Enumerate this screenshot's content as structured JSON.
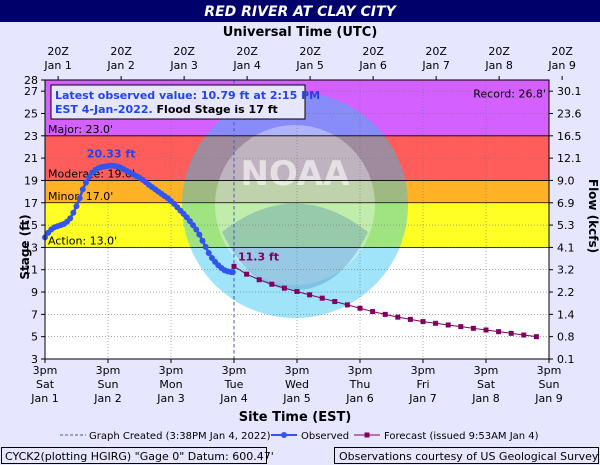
{
  "chart_data": {
    "type": "line",
    "title": "RED RIVER AT CLAY CITY",
    "top_axis_title": "Universal Time (UTC)",
    "bottom_axis_title": "Site Time (EST)",
    "ylabel_left": "Stage (ft)",
    "ylabel_right": "Flow (kcfs)",
    "ylim": [
      3,
      28
    ],
    "y_ticks": [
      3,
      5,
      7,
      9,
      11,
      13,
      15,
      17,
      19,
      21,
      23,
      25,
      27,
      28
    ],
    "flow_ticks": [
      {
        "stage": 27,
        "label": "30.1"
      },
      {
        "stage": 25,
        "label": "23.6"
      },
      {
        "stage": 23,
        "label": "16.5"
      },
      {
        "stage": 21,
        "label": "12.1"
      },
      {
        "stage": 19,
        "label": "9.0"
      },
      {
        "stage": 17,
        "label": "6.9"
      },
      {
        "stage": 15,
        "label": "5.3"
      },
      {
        "stage": 13,
        "label": "4.1"
      },
      {
        "stage": 11,
        "label": "3.2"
      },
      {
        "stage": 9,
        "label": "2.2"
      },
      {
        "stage": 7,
        "label": "1.4"
      },
      {
        "stage": 5,
        "label": "0.8"
      },
      {
        "stage": 3,
        "label": "0.1"
      }
    ],
    "x_range_days": [
      0,
      8
    ],
    "bottom_ticks": [
      {
        "l1": "3pm",
        "l2": "Sat",
        "l3": "Jan 1"
      },
      {
        "l1": "3pm",
        "l2": "Sun",
        "l3": "Jan 2"
      },
      {
        "l1": "3pm",
        "l2": "Mon",
        "l3": "Jan 3"
      },
      {
        "l1": "3pm",
        "l2": "Tue",
        "l3": "Jan 4"
      },
      {
        "l1": "3pm",
        "l2": "Wed",
        "l3": "Jan 5"
      },
      {
        "l1": "3pm",
        "l2": "Thu",
        "l3": "Jan 6"
      },
      {
        "l1": "3pm",
        "l2": "Fri",
        "l3": "Jan 7"
      },
      {
        "l1": "3pm",
        "l2": "Sat",
        "l3": "Jan 8"
      },
      {
        "l1": "3pm",
        "l2": "Sun",
        "l3": "Jan 9"
      }
    ],
    "top_ticks": [
      {
        "l1": "20Z",
        "l2": "Jan 1"
      },
      {
        "l1": "20Z",
        "l2": "Jan 2"
      },
      {
        "l1": "20Z",
        "l2": "Jan 3"
      },
      {
        "l1": "20Z",
        "l2": "Jan 4"
      },
      {
        "l1": "20Z",
        "l2": "Jan 5"
      },
      {
        "l1": "20Z",
        "l2": "Jan 6"
      },
      {
        "l1": "20Z",
        "l2": "Jan 7"
      },
      {
        "l1": "20Z",
        "l2": "Jan 8"
      },
      {
        "l1": "20Z",
        "l2": "Jan 9"
      }
    ],
    "bands": [
      {
        "name": "Action",
        "label": "Action: 13.0'",
        "from": 13,
        "to": 17,
        "color": "#ffff00"
      },
      {
        "name": "Minor",
        "label": "Minor: 17.0'",
        "from": 17,
        "to": 19,
        "color": "#ffa500"
      },
      {
        "name": "Moderate",
        "label": "Moderate: 19.0'",
        "from": 19,
        "to": 23,
        "color": "#ff4040"
      },
      {
        "name": "Major",
        "label": "Major: 23.0'",
        "from": 23,
        "to": 28,
        "color": "#cc44ff"
      }
    ],
    "record": {
      "label": "Record: 26.8'",
      "value": 26.8
    },
    "created_marker_day": 3.0,
    "info_box": {
      "line1": "Latest observed value: 10.79 ft at 2:15 PM",
      "line2a": "EST 4-Jan-2022.",
      "line2b": " Flood Stage is 17 ft"
    },
    "peak_label": "20.33 ft",
    "forecast_label": "11.3 ft",
    "series": [
      {
        "name": "Observed",
        "color": "#3355ee",
        "x": [
          0.0,
          0.05,
          0.1,
          0.15,
          0.2,
          0.25,
          0.3,
          0.35,
          0.4,
          0.45,
          0.5,
          0.55,
          0.6,
          0.65,
          0.7,
          0.75,
          0.8,
          0.85,
          0.9,
          0.95,
          1.0,
          1.05,
          1.1,
          1.15,
          1.2,
          1.25,
          1.3,
          1.35,
          1.4,
          1.45,
          1.5,
          1.55,
          1.6,
          1.65,
          1.7,
          1.75,
          1.8,
          1.85,
          1.9,
          1.95,
          2.0,
          2.05,
          2.1,
          2.15,
          2.2,
          2.25,
          2.3,
          2.35,
          2.4,
          2.45,
          2.5,
          2.55,
          2.6,
          2.65,
          2.7,
          2.75,
          2.8,
          2.85,
          2.9,
          2.95,
          2.98
        ],
        "y": [
          13.9,
          14.3,
          14.6,
          14.8,
          14.9,
          15.0,
          15.1,
          15.3,
          15.6,
          16.1,
          16.7,
          17.4,
          18.2,
          18.8,
          19.3,
          19.7,
          19.95,
          20.1,
          20.2,
          20.25,
          20.3,
          20.33,
          20.3,
          20.25,
          20.15,
          20.0,
          19.85,
          19.7,
          19.55,
          19.4,
          19.25,
          19.05,
          18.85,
          18.6,
          18.4,
          18.2,
          18.0,
          17.8,
          17.6,
          17.4,
          17.15,
          16.9,
          16.6,
          16.3,
          16.0,
          15.7,
          15.35,
          15.0,
          14.6,
          14.15,
          13.6,
          13.05,
          12.5,
          12.05,
          11.7,
          11.4,
          11.15,
          10.95,
          10.85,
          10.8,
          10.79
        ]
      },
      {
        "name": "Forecast (issued 9:53AM Jan 4)",
        "color": "#800060",
        "x": [
          3.0,
          3.2,
          3.4,
          3.6,
          3.8,
          4.0,
          4.2,
          4.4,
          4.6,
          4.8,
          5.0,
          5.2,
          5.4,
          5.6,
          5.8,
          6.0,
          6.2,
          6.4,
          6.6,
          6.8,
          7.0,
          7.2,
          7.4,
          7.6,
          7.8
        ],
        "y": [
          11.3,
          10.6,
          10.1,
          9.7,
          9.35,
          9.05,
          8.75,
          8.45,
          8.15,
          7.85,
          7.55,
          7.25,
          7.0,
          6.75,
          6.55,
          6.35,
          6.2,
          6.05,
          5.9,
          5.75,
          5.6,
          5.45,
          5.3,
          5.15,
          5.0
        ]
      }
    ],
    "legend": {
      "created": "Graph Created (3:38PM Jan 4, 2022)",
      "observed": "Observed",
      "forecast": "Forecast (issued 9:53AM Jan 4)"
    }
  },
  "footer": {
    "left": "CYCK2(plotting HGIRG) \"Gage 0\" Datum: 600.47'",
    "right": "Observations courtesy of US Geological Survey"
  },
  "colors": {
    "background": "#e6e6ff",
    "title_bg": "#00006b",
    "plot_bg": "#ffffff"
  }
}
